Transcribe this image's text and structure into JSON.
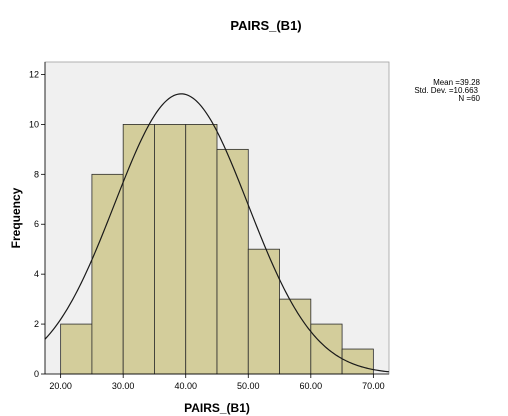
{
  "chart_data": {
    "type": "bar",
    "title": "PAIRS_(B1)",
    "xlabel": "PAIRS_(B1)",
    "ylabel": "Frequency",
    "bins": [
      {
        "from": 20,
        "to": 25,
        "count": 2
      },
      {
        "from": 25,
        "to": 30,
        "count": 8
      },
      {
        "from": 30,
        "to": 35,
        "count": 10
      },
      {
        "from": 35,
        "to": 40,
        "count": 10
      },
      {
        "from": 40,
        "to": 45,
        "count": 10
      },
      {
        "from": 45,
        "to": 50,
        "count": 9
      },
      {
        "from": 50,
        "to": 55,
        "count": 5
      },
      {
        "from": 55,
        "to": 60,
        "count": 3
      },
      {
        "from": 60,
        "to": 65,
        "count": 2
      },
      {
        "from": 65,
        "to": 70,
        "count": 1
      }
    ],
    "xlim": [
      17.5,
      72.5
    ],
    "ylim": [
      0,
      12.5
    ],
    "x_ticks": [
      "20.00",
      "30.00",
      "40.00",
      "50.00",
      "60.00",
      "70.00"
    ],
    "x_tick_values": [
      20,
      30,
      40,
      50,
      60,
      70
    ],
    "y_ticks": [
      "0",
      "2",
      "4",
      "6",
      "8",
      "10",
      "12"
    ],
    "y_tick_values": [
      0,
      2,
      4,
      6,
      8,
      10,
      12
    ],
    "normal_curve": {
      "mean": 39.28,
      "sd": 10.663,
      "n": 60,
      "bin_width": 5
    },
    "stats": {
      "mean": "Mean =39.28",
      "sd": "Std. Dev. =10.663",
      "n": "N =60"
    },
    "colors": {
      "bar_fill": "#d3cd9b",
      "bar_stroke": "#2b2b2b",
      "plot_background": "#f0f0f0",
      "curve": "#1a1a1a"
    }
  }
}
